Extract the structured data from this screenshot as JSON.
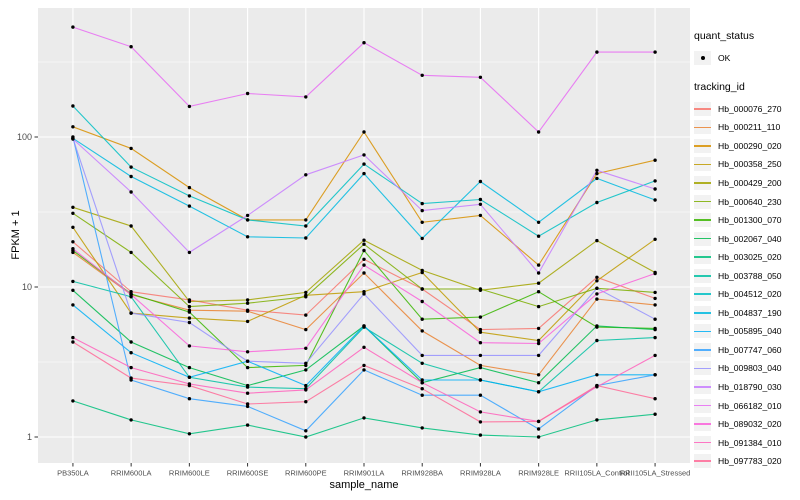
{
  "figure": {
    "y_axis_title": "FPKM + 1",
    "x_axis_title": "sample_name"
  },
  "legend": {
    "quant_status_title": "quant_status",
    "quant_status_items": [
      {
        "label": "OK",
        "symbol": "black-point"
      }
    ],
    "tracking_id_title": "tracking_id"
  },
  "chart_data": {
    "type": "line",
    "title": "",
    "xlabel": "sample_name",
    "ylabel": "FPKM + 1",
    "y_scale": "log10",
    "ylim": [
      0.67,
      720
    ],
    "y_ticks": [
      1,
      10,
      100
    ],
    "y_minor_ticks": [
      3.162,
      31.62,
      316.2
    ],
    "grid": true,
    "legend_position": "right",
    "panel_background": "#EBEBEB",
    "gridline_color": "#FFFFFF",
    "tick_color": "#333333",
    "axis_text_color": "#4D4D4D",
    "point_color": "#000000",
    "categories": [
      "PB350LA",
      "RRIM600LA",
      "RRIM600LE",
      "RRIM600SE",
      "RRIM600PE",
      "RRIM901LA",
      "RRIM928BA",
      "RRIM928LA",
      "RRIM928LE",
      "RRII105LA_Control",
      "RRII105LA_Stressed"
    ],
    "series": [
      {
        "name": "Hb_000076_270",
        "color": "#F8766D",
        "values": [
          20,
          9.3,
          8.2,
          7.0,
          6.5,
          15.3,
          9.7,
          5.2,
          5.3,
          11.6,
          8.4
        ]
      },
      {
        "name": "Hb_000211_110",
        "color": "#EA8331",
        "values": [
          17,
          8.9,
          7.0,
          6.9,
          5.2,
          12.4,
          5.1,
          3.0,
          2.6,
          8.3,
          7.6
        ]
      },
      {
        "name": "Hb_000290_020",
        "color": "#D89000",
        "values": [
          117,
          84,
          46,
          28,
          28,
          108,
          27,
          30,
          14,
          57,
          70
        ]
      },
      {
        "name": "Hb_000358_250",
        "color": "#C09B00",
        "values": [
          25,
          6.7,
          6.2,
          5.9,
          8.8,
          9.3,
          12.5,
          5.0,
          4.4,
          11,
          20.8
        ]
      },
      {
        "name": "Hb_000429_200",
        "color": "#A3A500",
        "values": [
          34,
          25.5,
          8.0,
          8.2,
          9.2,
          20.5,
          12.9,
          9.5,
          10.6,
          20.4,
          12.5
        ]
      },
      {
        "name": "Hb_000640_230",
        "color": "#7CAE00",
        "values": [
          31,
          17,
          7.4,
          7.8,
          8.6,
          19.3,
          9.7,
          9.7,
          7.4,
          9.8,
          9.2
        ]
      },
      {
        "name": "Hb_001300_070",
        "color": "#39B600",
        "values": [
          17.5,
          9.0,
          6.8,
          2.9,
          3.0,
          17.5,
          6.1,
          6.3,
          9.3,
          5.4,
          5.3
        ]
      },
      {
        "name": "Hb_002067_040",
        "color": "#00BB4E",
        "values": [
          9.5,
          4.3,
          2.9,
          2.2,
          2.8,
          5.5,
          2.3,
          2.9,
          2.3,
          5.5,
          5.2
        ]
      },
      {
        "name": "Hb_003025_020",
        "color": "#00BF7D",
        "values": [
          1.74,
          1.3,
          1.05,
          1.2,
          1.0,
          1.34,
          1.15,
          1.03,
          1.0,
          1.3,
          1.42
        ]
      },
      {
        "name": "Hb_003788_050",
        "color": "#00C1A3",
        "values": [
          10.9,
          8.6,
          2.5,
          2.15,
          2.1,
          5.4,
          3.1,
          2.4,
          2.0,
          4.4,
          4.6
        ]
      },
      {
        "name": "Hb_004512_020",
        "color": "#00BFC4",
        "values": [
          161,
          63,
          40.5,
          28,
          25.5,
          66,
          36,
          38.3,
          21.8,
          36.6,
          51
        ]
      },
      {
        "name": "Hb_004837_190",
        "color": "#00BAE0",
        "values": [
          98,
          54.5,
          34.6,
          21.6,
          21.2,
          57,
          21.1,
          50.5,
          27,
          53,
          38
        ]
      },
      {
        "name": "Hb_005895_040",
        "color": "#00B0F6",
        "values": [
          7.6,
          3.65,
          2.5,
          3.2,
          2.2,
          5.5,
          2.4,
          2.4,
          2.0,
          2.6,
          2.6
        ]
      },
      {
        "name": "Hb_007747_060",
        "color": "#35A2FF",
        "values": [
          100,
          2.4,
          1.8,
          1.6,
          1.1,
          2.8,
          1.9,
          1.9,
          1.13,
          2.2,
          2.6
        ]
      },
      {
        "name": "Hb_009803_040",
        "color": "#9590FF",
        "values": [
          98,
          6.7,
          5.8,
          3.2,
          3.1,
          9.0,
          3.5,
          3.5,
          3.5,
          9.8,
          6.1
        ]
      },
      {
        "name": "Hb_018790_030",
        "color": "#C77CFF",
        "values": [
          97,
          43,
          17,
          30,
          56,
          76,
          32.3,
          35.6,
          12.4,
          60,
          45
        ]
      },
      {
        "name": "Hb_066182_010",
        "color": "#E76BF3",
        "values": [
          540,
          400,
          160,
          195,
          185,
          425,
          258,
          250,
          108,
          368,
          368
        ]
      },
      {
        "name": "Hb_089032_020",
        "color": "#FA62DB",
        "values": [
          18,
          8.9,
          4.05,
          3.7,
          3.9,
          14,
          8.0,
          4.25,
          4.2,
          9.0,
          12.3
        ]
      },
      {
        "name": "Hb_091384_010",
        "color": "#FF62BC",
        "values": [
          4.6,
          2.9,
          2.26,
          1.96,
          2.06,
          3.96,
          2.3,
          1.47,
          1.27,
          2.16,
          3.5
        ]
      },
      {
        "name": "Hb_097783_020",
        "color": "#FF6A98",
        "values": [
          4.3,
          2.47,
          2.2,
          1.66,
          1.72,
          3.0,
          2.1,
          1.26,
          1.27,
          2.2,
          1.8
        ]
      }
    ]
  }
}
